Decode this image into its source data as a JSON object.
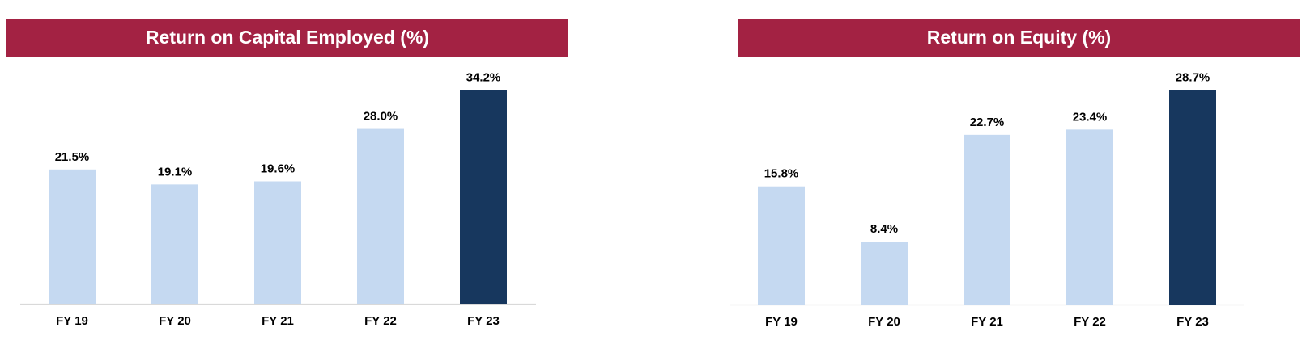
{
  "colors": {
    "title_bg": "#a32243",
    "bar_light": "#c5d9f1",
    "bar_highlight": "#17375e",
    "axis": "#d9d9d9"
  },
  "chart_data": [
    {
      "type": "bar",
      "title": "Return on Capital Employed (%)",
      "categories": [
        "FY 19",
        "FY 20",
        "FY 21",
        "FY 22",
        "FY 23"
      ],
      "values": [
        21.5,
        19.1,
        19.6,
        28.0,
        34.2
      ],
      "labels": [
        "21.5%",
        "19.1%",
        "19.6%",
        "28.0%",
        "34.2%"
      ],
      "highlight_index": 4,
      "ylim": [
        0,
        37
      ],
      "grid": false,
      "legend": "none"
    },
    {
      "type": "bar",
      "title": "Return on Equity (%)",
      "categories": [
        "FY 19",
        "FY 20",
        "FY 21",
        "FY 22",
        "FY 23"
      ],
      "values": [
        15.8,
        8.4,
        22.7,
        23.4,
        28.7
      ],
      "labels": [
        "15.8%",
        "8.4%",
        "22.7%",
        "23.4%",
        "28.7%"
      ],
      "highlight_index": 4,
      "ylim": [
        0,
        31
      ],
      "grid": false,
      "legend": "none"
    }
  ]
}
